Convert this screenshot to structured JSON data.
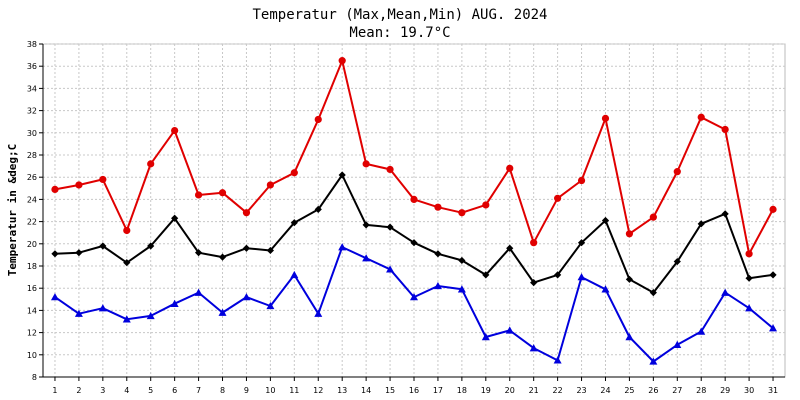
{
  "chart_data": {
    "type": "line",
    "title": "Temperatur (Max,Mean,Min) AUG. 2024",
    "subtitle": "Mean: 19.7°C",
    "xlabel": "",
    "ylabel": "Temperatur in &deg;C",
    "ylim": [
      8,
      38
    ],
    "y_ticks": [
      8,
      10,
      12,
      14,
      16,
      18,
      20,
      22,
      24,
      26,
      28,
      30,
      32,
      34,
      36,
      38
    ],
    "grid": true,
    "categories": [
      "1",
      "2",
      "3",
      "4",
      "5",
      "6",
      "7",
      "8",
      "9",
      "10",
      "11",
      "12",
      "13",
      "14",
      "15",
      "16",
      "17",
      "18",
      "19",
      "20",
      "21",
      "22",
      "23",
      "24",
      "25",
      "26",
      "27",
      "28",
      "29",
      "30",
      "31"
    ],
    "series": [
      {
        "name": "Max",
        "color": "#e00000",
        "marker": "circle",
        "values": [
          24.9,
          25.3,
          25.8,
          21.2,
          27.2,
          30.2,
          24.4,
          24.6,
          22.8,
          25.3,
          26.4,
          31.2,
          36.5,
          27.2,
          26.7,
          24.0,
          23.3,
          22.8,
          23.5,
          26.8,
          20.1,
          24.1,
          25.7,
          31.3,
          20.9,
          22.4,
          26.5,
          31.4,
          30.3,
          19.1,
          23.1
        ]
      },
      {
        "name": "Mean",
        "color": "#000000",
        "marker": "diamond",
        "values": [
          19.1,
          19.2,
          19.8,
          18.3,
          19.8,
          22.3,
          19.2,
          18.8,
          19.6,
          19.4,
          21.9,
          23.1,
          26.2,
          21.7,
          21.5,
          20.1,
          19.1,
          18.5,
          17.2,
          19.6,
          16.5,
          17.2,
          20.1,
          22.1,
          16.8,
          15.6,
          18.4,
          21.8,
          22.7,
          16.9,
          17.2
        ]
      },
      {
        "name": "Min",
        "color": "#0000dd",
        "marker": "triangle",
        "values": [
          15.2,
          13.7,
          14.2,
          13.2,
          13.5,
          14.6,
          15.6,
          13.8,
          15.2,
          14.4,
          17.2,
          13.7,
          19.7,
          18.7,
          17.7,
          15.2,
          16.2,
          15.9,
          11.6,
          12.2,
          10.6,
          9.5,
          17.0,
          15.9,
          11.6,
          9.4,
          10.9,
          12.1,
          15.6,
          14.2,
          12.4
        ]
      }
    ]
  }
}
